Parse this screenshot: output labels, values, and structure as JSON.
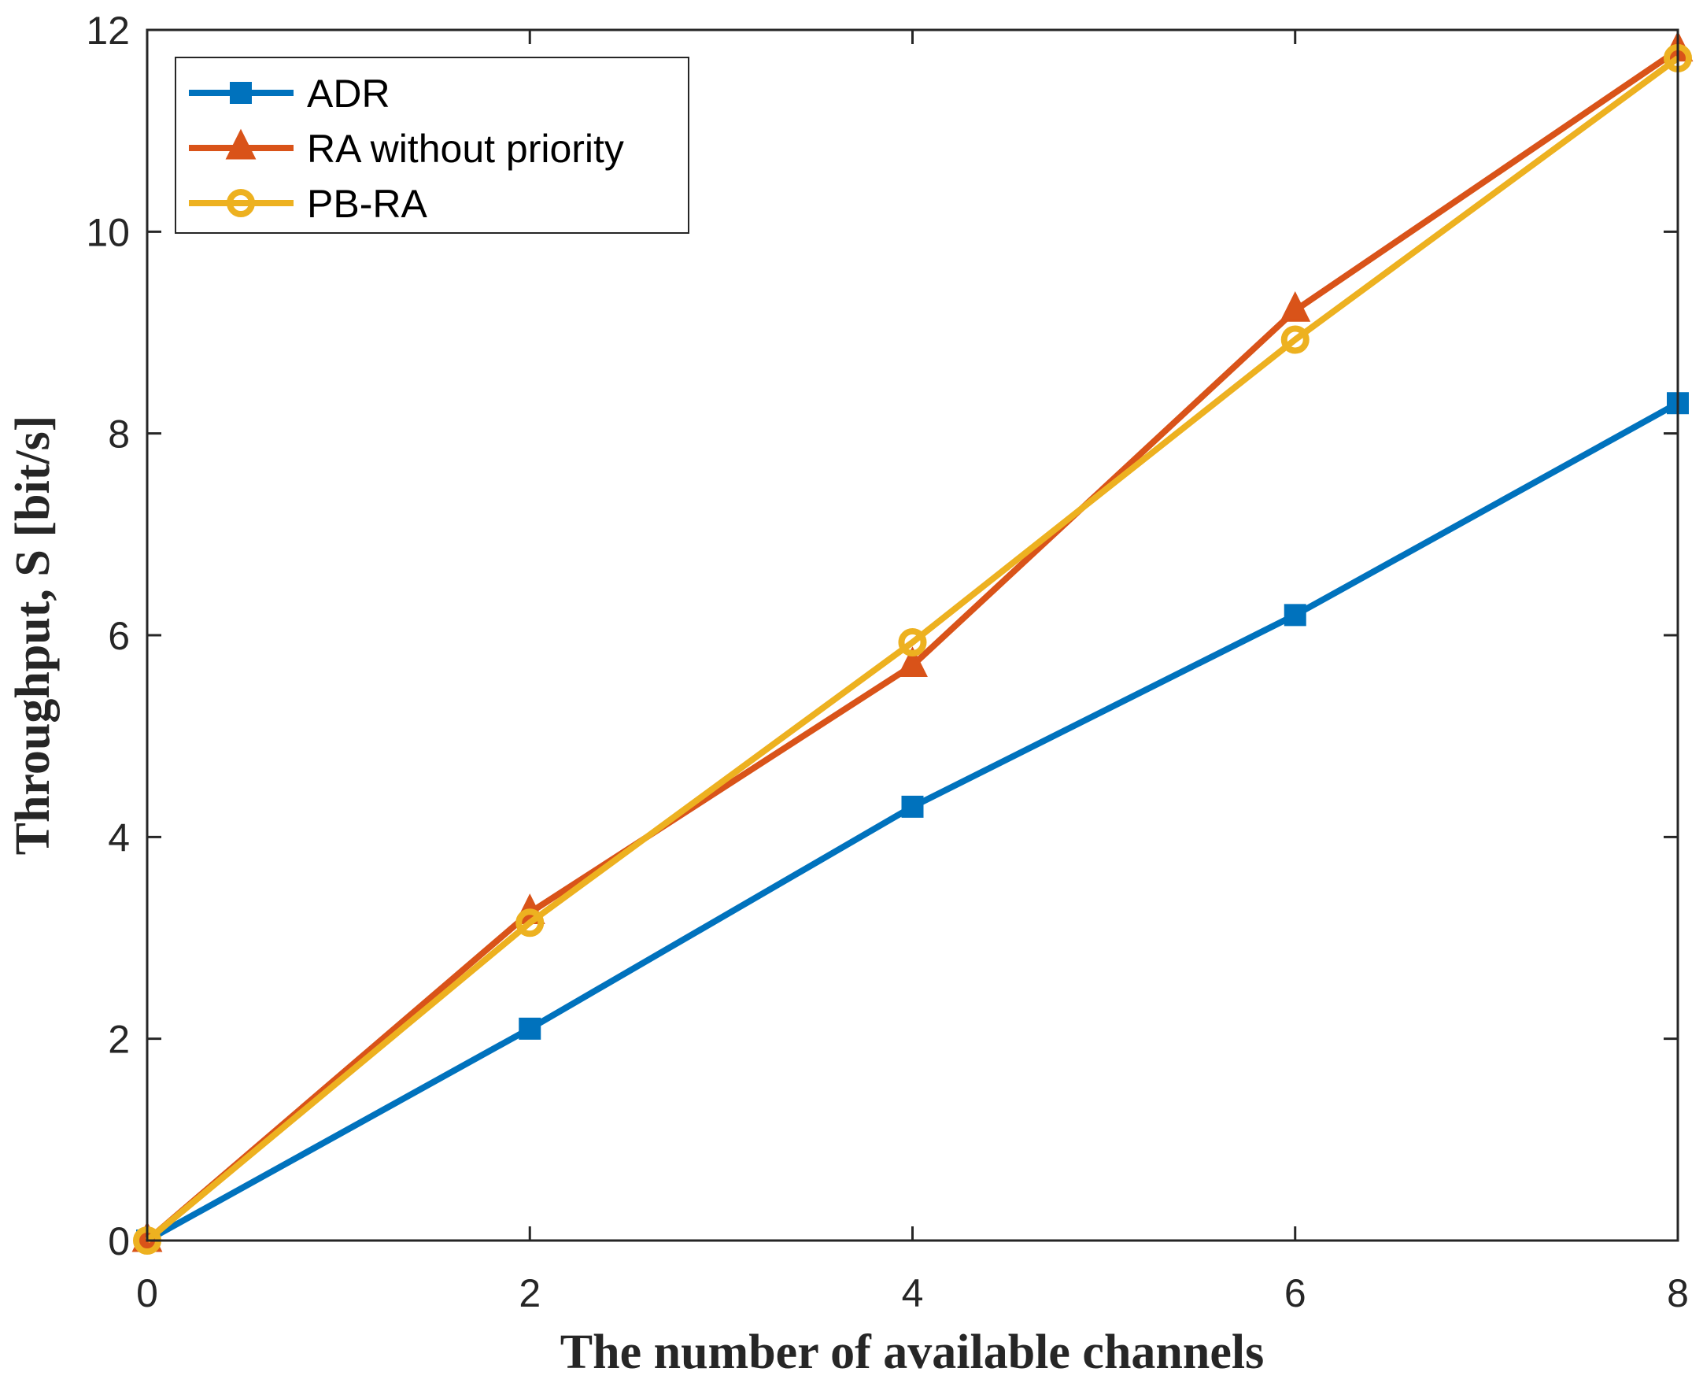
{
  "chart_data": {
    "type": "line",
    "title": "",
    "xlabel": "The number of available channels",
    "ylabel": "Throughput, S [bit/s]",
    "xlim": [
      0,
      8
    ],
    "ylim": [
      0,
      12
    ],
    "xticks": [
      "0",
      "2",
      "4",
      "6",
      "8"
    ],
    "yticks": [
      "0",
      "2",
      "4",
      "6",
      "8",
      "10",
      "12"
    ],
    "grid": false,
    "legend_position": "top-left",
    "x": [
      0,
      2,
      4,
      6,
      8
    ],
    "series": [
      {
        "name": "ADR",
        "values": [
          0,
          2.1,
          4.3,
          6.2,
          8.3
        ],
        "color": "#0072BD",
        "marker": "square"
      },
      {
        "name": "RA without priority",
        "values": [
          0,
          3.25,
          5.7,
          9.22,
          11.8
        ],
        "color": "#D95319",
        "marker": "triangle"
      },
      {
        "name": "PB-RA",
        "values": [
          0,
          3.15,
          5.93,
          8.93,
          11.72
        ],
        "color": "#EDB120",
        "marker": "circle"
      }
    ]
  }
}
